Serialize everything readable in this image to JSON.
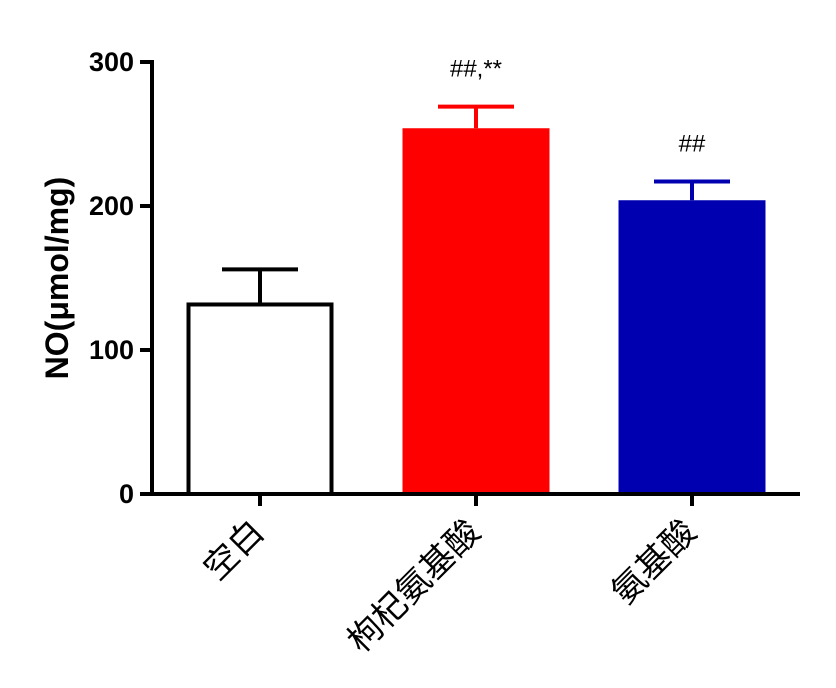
{
  "chart_data": {
    "type": "bar",
    "categories": [
      "空白",
      "枸杞氨基酸",
      "氨基酸"
    ],
    "values": [
      133,
      254,
      204
    ],
    "errors": [
      23,
      15,
      13
    ],
    "annotations": [
      "",
      "##,**",
      "##"
    ],
    "colors": [
      "#ffffff",
      "#ff0000",
      "#0000b0"
    ],
    "edge_colors": [
      "#000000",
      "#ff0000",
      "#0000b0"
    ],
    "ylabel": "NO(μmol/mg)",
    "xlabel": "",
    "ylim": [
      0,
      300
    ],
    "yticks": [
      0,
      100,
      200,
      300
    ],
    "ytick_labels": [
      "0",
      "100",
      "200",
      "300"
    ],
    "grid": false
  }
}
